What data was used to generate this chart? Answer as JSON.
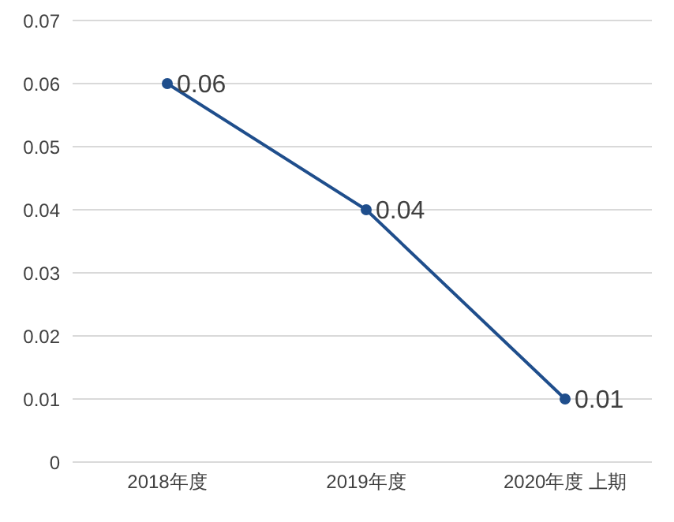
{
  "chart_data": {
    "type": "line",
    "categories": [
      "2018年度",
      "2019年度",
      "2020年度 上期"
    ],
    "values": [
      0.06,
      0.04,
      0.01
    ],
    "color": "#1f4e8c",
    "ylim": [
      0,
      0.07
    ],
    "yticks": [
      0,
      0.01,
      0.02,
      0.03,
      0.04,
      0.05,
      0.06,
      0.07
    ],
    "grid": "y",
    "marker": "circle",
    "data_labels": true
  }
}
